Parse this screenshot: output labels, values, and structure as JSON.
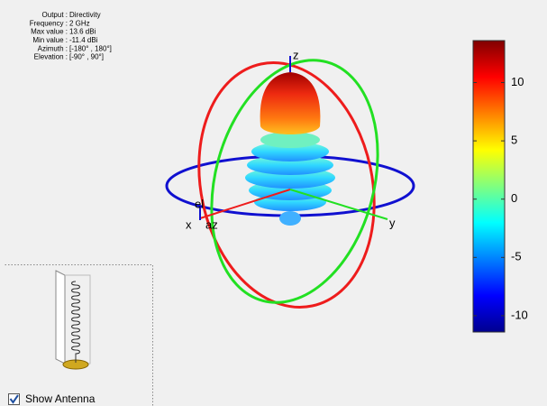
{
  "info": [
    {
      "label": "Output :",
      "value": "Directivity"
    },
    {
      "label": "Frequency :",
      "value": "2 GHz"
    },
    {
      "label": "Max value :",
      "value": "13.6 dBi"
    },
    {
      "label": "Min value :",
      "value": "-11.4 dBi"
    },
    {
      "label": "Azimuth :",
      "value": "[-180° , 180°]"
    },
    {
      "label": "Elevation :",
      "value": "[-90° , 90°]"
    }
  ],
  "axis_labels": {
    "x": "x",
    "y": "y",
    "z": "z",
    "az": "az",
    "el": "el"
  },
  "colorbar": {
    "lim": [
      -11.4,
      13.6
    ],
    "ticks": [
      -10,
      -5,
      0,
      5,
      10
    ]
  },
  "checkbox": {
    "label": "Show Antenna",
    "checked": true
  }
}
